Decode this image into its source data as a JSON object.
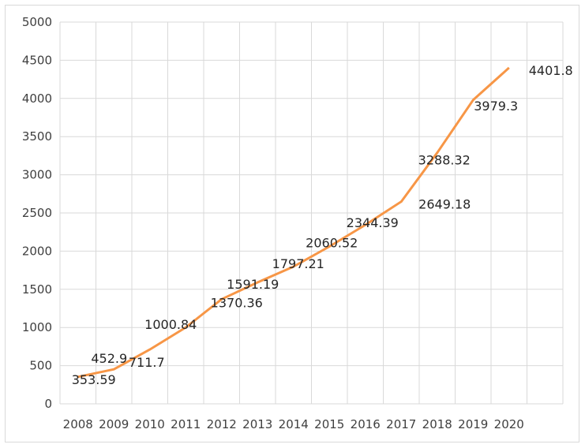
{
  "chart_data": {
    "type": "line",
    "title": "",
    "xlabel": "",
    "ylabel": "",
    "categories": [
      "2008",
      "2009",
      "2010",
      "2011",
      "2012",
      "2013",
      "2014",
      "2015",
      "2016",
      "2017",
      "2018",
      "2019",
      "2020"
    ],
    "series": [
      {
        "values": [
          353.59,
          452.9,
          711.7,
          1000.84,
          1370.36,
          1591.19,
          1797.21,
          2060.52,
          2344.39,
          2649.18,
          3288.32,
          3979.3,
          4401.8
        ],
        "labels": [
          "353.59",
          "452.9",
          "711.7",
          "1000.84",
          "1370.36",
          "1591.19",
          "1797.21",
          "2060.52",
          "2344.39",
          "2649.18",
          "3288.32",
          "3979.3",
          "4401.8"
        ],
        "color": "#f79646"
      }
    ],
    "ylim": [
      0,
      5000
    ],
    "yticks": [
      "0",
      "500",
      "1000",
      "1500",
      "2000",
      "2500",
      "3000",
      "3500",
      "4000",
      "4500",
      "5000"
    ],
    "grid": true,
    "legend": "none",
    "colors": {
      "line": "#f79646",
      "grid": "#d9d9d9"
    }
  }
}
